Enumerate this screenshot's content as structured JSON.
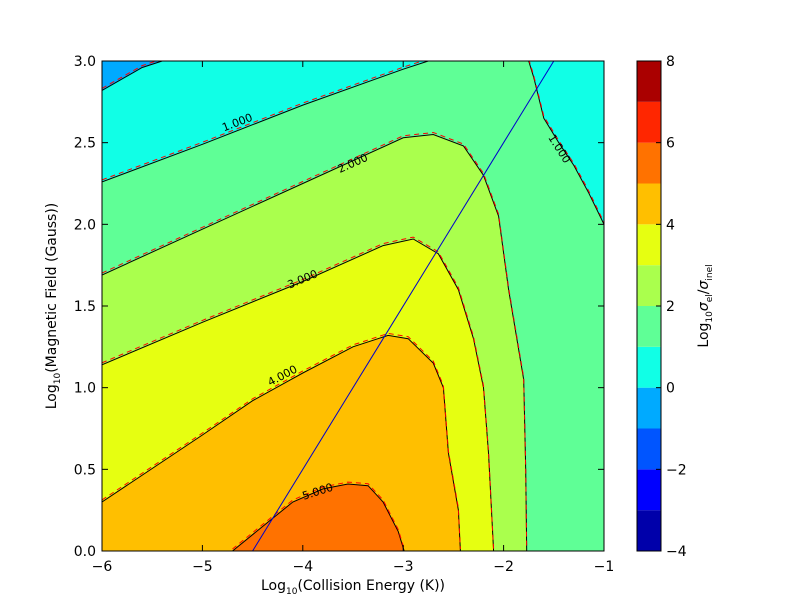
{
  "chart_data": {
    "type": "contour",
    "xlabel": {
      "prefix": "Log",
      "sub": "10",
      "suffix": "(Collision Energy (K))"
    },
    "ylabel": {
      "prefix": "Log",
      "sub": "10",
      "suffix": "(Magnetic Field (Gauss))"
    },
    "colorbar_label": {
      "prefix": "Log",
      "sub": "10",
      "num": "σ",
      "num_sub": "el",
      "slash": "/",
      "den": "σ",
      "den_sub": "inel"
    },
    "xlim": [
      -6,
      -1
    ],
    "ylim": [
      0,
      3
    ],
    "xticks": [
      {
        "value": -6,
        "label": "−6"
      },
      {
        "value": -5,
        "label": "−5"
      },
      {
        "value": -4,
        "label": "−4"
      },
      {
        "value": -3,
        "label": "−3"
      },
      {
        "value": -2,
        "label": "−2"
      },
      {
        "value": -1,
        "label": "−1"
      }
    ],
    "yticks": [
      {
        "value": 0,
        "label": "0.0"
      },
      {
        "value": 0.5,
        "label": "0.5"
      },
      {
        "value": 1,
        "label": "1.0"
      },
      {
        "value": 1.5,
        "label": "1.5"
      },
      {
        "value": 2,
        "label": "2.0"
      },
      {
        "value": 2.5,
        "label": "2.5"
      },
      {
        "value": 3,
        "label": "3.0"
      }
    ],
    "colorbar": {
      "range": [
        -4,
        8
      ],
      "ticks": [
        {
          "value": -4,
          "label": "−4"
        },
        {
          "value": -2,
          "label": "−2"
        },
        {
          "value": 0,
          "label": "0"
        },
        {
          "value": 2,
          "label": "2"
        },
        {
          "value": 4,
          "label": "4"
        },
        {
          "value": 6,
          "label": "6"
        },
        {
          "value": 8,
          "label": "8"
        }
      ],
      "bands": [
        {
          "from": -4,
          "to": -3,
          "color": "#0000aa"
        },
        {
          "from": -3,
          "to": -2,
          "color": "#0000ff"
        },
        {
          "from": -2,
          "to": -1,
          "color": "#0055ff"
        },
        {
          "from": -1,
          "to": 0,
          "color": "#00aaff"
        },
        {
          "from": 0,
          "to": 1,
          "color": "#11ffe6"
        },
        {
          "from": 1,
          "to": 2,
          "color": "#5fff96"
        },
        {
          "from": 2,
          "to": 3,
          "color": "#aaff4d"
        },
        {
          "from": 3,
          "to": 4,
          "color": "#e6ff11"
        },
        {
          "from": 4,
          "to": 5,
          "color": "#ffbf00"
        },
        {
          "from": 5,
          "to": 6,
          "color": "#ff7200"
        },
        {
          "from": 6,
          "to": 7,
          "color": "#ff2600"
        },
        {
          "from": 7,
          "to": 8,
          "color": "#aa0000"
        }
      ]
    },
    "regions": [
      {
        "name": "level-0-1",
        "color": "#11ffe6",
        "points": [
          [
            -6,
            3
          ],
          [
            -1,
            3
          ],
          [
            -1,
            0
          ],
          [
            -6,
            0
          ]
        ]
      },
      {
        "name": "level-1-2",
        "color": "#5fff96",
        "points": [
          [
            -6,
            2.26
          ],
          [
            -5,
            2.49
          ],
          [
            -4,
            2.73
          ],
          [
            -3,
            2.95
          ],
          [
            -2.75,
            3
          ],
          [
            -1.75,
            3
          ],
          [
            -1.7,
            2.9
          ],
          [
            -1.6,
            2.65
          ],
          [
            -1.45,
            2.5
          ],
          [
            -1.3,
            2.36
          ],
          [
            -1.15,
            2.19
          ],
          [
            -1,
            2.0
          ],
          [
            -1,
            0
          ],
          [
            -6,
            0
          ]
        ]
      },
      {
        "name": "level-2-3",
        "color": "#aaff4d",
        "points": [
          [
            -6,
            1.69
          ],
          [
            -5,
            1.97
          ],
          [
            -4,
            2.25
          ],
          [
            -3,
            2.53
          ],
          [
            -2.7,
            2.55
          ],
          [
            -2.4,
            2.48
          ],
          [
            -2.2,
            2.3
          ],
          [
            -2.05,
            2.05
          ],
          [
            -1.95,
            1.6
          ],
          [
            -1.8,
            1.05
          ],
          [
            -1.78,
            0.5
          ],
          [
            -1.77,
            0
          ],
          [
            -6,
            0
          ]
        ]
      },
      {
        "name": "level-3-4",
        "color": "#e6ff11",
        "points": [
          [
            -6,
            1.14
          ],
          [
            -5,
            1.4
          ],
          [
            -4,
            1.65
          ],
          [
            -3.2,
            1.87
          ],
          [
            -2.9,
            1.91
          ],
          [
            -2.65,
            1.82
          ],
          [
            -2.45,
            1.6
          ],
          [
            -2.3,
            1.3
          ],
          [
            -2.2,
            1.0
          ],
          [
            -2.15,
            0.6
          ],
          [
            -2.1,
            0
          ],
          [
            -6,
            0
          ]
        ]
      },
      {
        "name": "level-4-5",
        "color": "#ffbf00",
        "points": [
          [
            -6,
            0.3
          ],
          [
            -5,
            0.71
          ],
          [
            -4.5,
            0.92
          ],
          [
            -4,
            1.09
          ],
          [
            -3.5,
            1.25
          ],
          [
            -3.15,
            1.32
          ],
          [
            -2.95,
            1.3
          ],
          [
            -2.7,
            1.15
          ],
          [
            -2.6,
            1.0
          ],
          [
            -2.55,
            0.6
          ],
          [
            -2.45,
            0.25
          ],
          [
            -2.43,
            0
          ],
          [
            -6,
            0
          ]
        ]
      },
      {
        "name": "level-5-6",
        "color": "#ff7200",
        "points": [
          [
            -4.7,
            0
          ],
          [
            -4.4,
            0.15
          ],
          [
            -4.1,
            0.3
          ],
          [
            -3.8,
            0.38
          ],
          [
            -3.55,
            0.41
          ],
          [
            -3.35,
            0.4
          ],
          [
            -3.2,
            0.3
          ],
          [
            -3.05,
            0.12
          ],
          [
            -2.99,
            0
          ]
        ]
      },
      {
        "name": "level-neg1-0",
        "color": "#00aaff",
        "points": [
          [
            -6,
            2.82
          ],
          [
            -5.6,
            2.96
          ],
          [
            -5.4,
            3
          ],
          [
            -6,
            3
          ]
        ]
      }
    ],
    "contours": [
      {
        "label": "1.000",
        "label_at": [
          -4.65,
          2.62
        ],
        "points": [
          [
            -6,
            2.26
          ],
          [
            -5,
            2.49
          ],
          [
            -4,
            2.73
          ],
          [
            -3,
            2.95
          ],
          [
            -2.75,
            3
          ]
        ]
      },
      {
        "label": "1.000",
        "label_at": [
          -1.45,
          2.46
        ],
        "points": [
          [
            -1.75,
            3
          ],
          [
            -1.7,
            2.9
          ],
          [
            -1.6,
            2.65
          ],
          [
            -1.45,
            2.5
          ],
          [
            -1.3,
            2.36
          ],
          [
            -1.15,
            2.19
          ],
          [
            -1,
            2.0
          ]
        ]
      },
      {
        "label": "2.000",
        "label_at": [
          -3.5,
          2.37
        ],
        "points": [
          [
            -6,
            1.69
          ],
          [
            -5,
            1.97
          ],
          [
            -4,
            2.25
          ],
          [
            -3,
            2.53
          ],
          [
            -2.7,
            2.55
          ],
          [
            -2.4,
            2.48
          ],
          [
            -2.2,
            2.3
          ],
          [
            -2.05,
            2.05
          ],
          [
            -1.95,
            1.6
          ],
          [
            -1.8,
            1.05
          ],
          [
            -1.78,
            0.5
          ],
          [
            -1.77,
            0
          ]
        ]
      },
      {
        "label": "3.000",
        "label_at": [
          -4.0,
          1.66
        ],
        "points": [
          [
            -6,
            1.14
          ],
          [
            -5,
            1.4
          ],
          [
            -4,
            1.65
          ],
          [
            -3.2,
            1.87
          ],
          [
            -2.9,
            1.91
          ],
          [
            -2.65,
            1.82
          ],
          [
            -2.45,
            1.6
          ],
          [
            -2.3,
            1.3
          ],
          [
            -2.2,
            1.0
          ],
          [
            -2.15,
            0.6
          ],
          [
            -2.1,
            0
          ]
        ]
      },
      {
        "label": "4.000",
        "label_at": [
          -4.2,
          1.07
        ],
        "points": [
          [
            -6,
            0.3
          ],
          [
            -5,
            0.71
          ],
          [
            -4.5,
            0.92
          ],
          [
            -4,
            1.09
          ],
          [
            -3.5,
            1.25
          ],
          [
            -3.15,
            1.32
          ],
          [
            -2.95,
            1.3
          ],
          [
            -2.7,
            1.15
          ],
          [
            -2.6,
            1.0
          ],
          [
            -2.55,
            0.6
          ],
          [
            -2.45,
            0.25
          ],
          [
            -2.43,
            0
          ]
        ]
      },
      {
        "label": "5.000",
        "label_at": [
          -3.85,
          0.36
        ],
        "points": [
          [
            -4.7,
            0
          ],
          [
            -4.4,
            0.15
          ],
          [
            -4.1,
            0.3
          ],
          [
            -3.8,
            0.38
          ],
          [
            -3.55,
            0.41
          ],
          [
            -3.35,
            0.4
          ],
          [
            -3.2,
            0.3
          ],
          [
            -3.05,
            0.12
          ],
          [
            -2.99,
            0
          ]
        ]
      },
      {
        "label": "",
        "label_at": null,
        "points": [
          [
            -6,
            2.82
          ],
          [
            -5.6,
            2.96
          ],
          [
            -5.4,
            3
          ]
        ]
      }
    ],
    "diagonal_line": {
      "color": "#0000cc",
      "points": [
        [
          -4.5,
          0
        ],
        [
          -1.5,
          3
        ]
      ]
    },
    "contour_style": {
      "solid": "#000000",
      "dashed": "#ff0000"
    }
  }
}
